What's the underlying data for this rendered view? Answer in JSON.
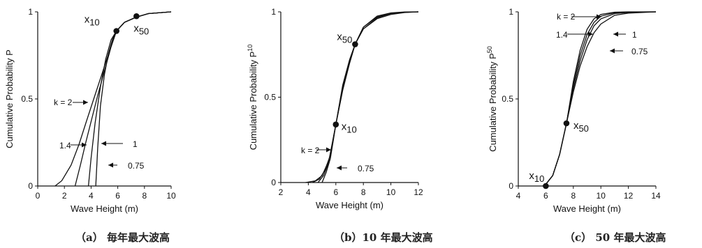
{
  "captions": {
    "a": "（a） 毎年最大波高",
    "b": "（b）10 年最大波高",
    "c": "（c） 50 年最大波高"
  },
  "chart_data": [
    {
      "type": "line",
      "xlabel": "Wave Height (m)",
      "ylabel": "Cumulative Probability",
      "ylabel_sup": "P",
      "xlim": [
        0,
        10
      ],
      "ylim": [
        0,
        1
      ],
      "xticks": [
        "0",
        "2",
        "4",
        "6",
        "8",
        "10"
      ],
      "yticks": [
        "0",
        "0.5",
        "1"
      ],
      "grid": false,
      "series": [
        {
          "name": "k = 2",
          "x": [
            1.3,
            1.8,
            2.5,
            3.1,
            3.6,
            4.2,
            4.8,
            5.4,
            5.9,
            6.5,
            7.4,
            8.3,
            10
          ],
          "y": [
            0,
            0.03,
            0.12,
            0.24,
            0.36,
            0.5,
            0.64,
            0.78,
            0.89,
            0.94,
            0.97,
            0.99,
            1.0
          ]
        },
        {
          "name": "1.4",
          "x": [
            2.8,
            3.2,
            3.6,
            4.0,
            4.5,
            5.0,
            5.5,
            5.9,
            6.5,
            7.4,
            8.3,
            10
          ],
          "y": [
            0,
            0.12,
            0.25,
            0.37,
            0.52,
            0.66,
            0.8,
            0.89,
            0.94,
            0.97,
            0.99,
            1.0
          ]
        },
        {
          "name": "1",
          "x": [
            3.8,
            4.0,
            4.3,
            4.7,
            5.1,
            5.5,
            5.9,
            6.5,
            7.4,
            8.3,
            10
          ],
          "y": [
            0,
            0.16,
            0.36,
            0.57,
            0.73,
            0.84,
            0.89,
            0.94,
            0.97,
            0.99,
            1.0
          ]
        },
        {
          "name": "0.75",
          "x": [
            4.35,
            4.5,
            4.7,
            5.0,
            5.3,
            5.6,
            5.9,
            6.5,
            7.4,
            8.3,
            10
          ],
          "y": [
            0,
            0.22,
            0.46,
            0.64,
            0.76,
            0.84,
            0.89,
            0.94,
            0.97,
            0.99,
            1.0
          ]
        }
      ],
      "points": [
        {
          "label": "x",
          "sub": "10",
          "x": 5.9,
          "y": 0.89
        },
        {
          "label": "x",
          "sub": "50",
          "x": 7.4,
          "y": 0.975
        }
      ],
      "annotations": [
        "k = 2",
        "1.4",
        "1",
        "0.75"
      ]
    },
    {
      "type": "line",
      "xlabel": "Wave Height (m)",
      "ylabel": "Cumulative Probability",
      "ylabel_sup": "P10",
      "xlim": [
        2,
        12
      ],
      "ylim": [
        0,
        1
      ],
      "xticks": [
        "2",
        "4",
        "6",
        "8",
        "10",
        "12"
      ],
      "yticks": [
        "0",
        "0.5",
        "1"
      ],
      "grid": false,
      "series": [
        {
          "name": "k = 2",
          "x": [
            3.8,
            4.5,
            5.0,
            5.5,
            6.0,
            6.5,
            7.0,
            7.4,
            8.0,
            9.0,
            10.0,
            11.0,
            12.0
          ],
          "y": [
            0,
            0.01,
            0.04,
            0.13,
            0.34,
            0.54,
            0.7,
            0.81,
            0.9,
            0.96,
            0.985,
            0.996,
            1.0
          ]
        },
        {
          "name": "1.4",
          "x": [
            4.3,
            4.8,
            5.2,
            5.6,
            6.0,
            6.5,
            7.0,
            7.4,
            8.0,
            9.0,
            10.0,
            11.0,
            12.0
          ],
          "y": [
            0,
            0.02,
            0.07,
            0.16,
            0.34,
            0.55,
            0.7,
            0.81,
            0.9,
            0.965,
            0.99,
            0.997,
            1.0
          ]
        },
        {
          "name": "1",
          "x": [
            4.7,
            5.1,
            5.4,
            5.7,
            6.0,
            6.5,
            7.0,
            7.4,
            8.0,
            9.0,
            10.0,
            11.0,
            12.0
          ],
          "y": [
            0,
            0.04,
            0.1,
            0.2,
            0.34,
            0.56,
            0.71,
            0.81,
            0.91,
            0.97,
            0.992,
            0.998,
            1.0
          ]
        },
        {
          "name": "0.75",
          "x": [
            5.0,
            5.3,
            5.6,
            5.8,
            6.0,
            6.5,
            7.0,
            7.4,
            8.0,
            9.0,
            10.0,
            11.0,
            12.0
          ],
          "y": [
            0,
            0.06,
            0.14,
            0.24,
            0.34,
            0.57,
            0.72,
            0.81,
            0.91,
            0.975,
            0.994,
            0.999,
            1.0
          ]
        }
      ],
      "points": [
        {
          "label": "x",
          "sub": "10",
          "x": 6.0,
          "y": 0.34
        },
        {
          "label": "x",
          "sub": "50",
          "x": 7.4,
          "y": 0.81
        }
      ],
      "annotations": [
        "k = 2",
        "0.75"
      ]
    },
    {
      "type": "line",
      "xlabel": "Wave Height (m)",
      "ylabel": "Cumulative Probability",
      "ylabel_sup": "P50",
      "xlim": [
        4,
        14
      ],
      "ylim": [
        0,
        1
      ],
      "xticks": [
        "4",
        "6",
        "8",
        "10",
        "12",
        "14"
      ],
      "yticks": [
        "0",
        "0.5",
        "1"
      ],
      "grid": false,
      "series": [
        {
          "name": "k = 2",
          "x": [
            5.8,
            6.0,
            6.5,
            7.0,
            7.5,
            8.0,
            8.5,
            9.0,
            9.5,
            10.0,
            11.0,
            12.0,
            14.0
          ],
          "y": [
            0,
            0.01,
            0.06,
            0.18,
            0.36,
            0.6,
            0.78,
            0.9,
            0.96,
            0.985,
            0.998,
            1.0,
            1.0
          ]
        },
        {
          "name": "1.4",
          "x": [
            5.8,
            6.0,
            6.5,
            7.0,
            7.5,
            8.0,
            8.5,
            9.0,
            9.5,
            10.0,
            11.0,
            12.0,
            14.0
          ],
          "y": [
            0,
            0.01,
            0.06,
            0.18,
            0.36,
            0.58,
            0.75,
            0.87,
            0.94,
            0.975,
            0.995,
            0.999,
            1.0
          ]
        },
        {
          "name": "1",
          "x": [
            5.8,
            6.0,
            6.5,
            7.0,
            7.5,
            8.0,
            8.5,
            9.0,
            9.5,
            10.0,
            11.0,
            12.0,
            14.0
          ],
          "y": [
            0,
            0.01,
            0.06,
            0.18,
            0.36,
            0.56,
            0.72,
            0.84,
            0.92,
            0.96,
            0.99,
            0.997,
            1.0
          ]
        },
        {
          "name": "0.75",
          "x": [
            5.8,
            6.0,
            6.5,
            7.0,
            7.5,
            8.0,
            8.5,
            9.0,
            9.5,
            10.0,
            11.0,
            12.0,
            14.0
          ],
          "y": [
            0,
            0.01,
            0.06,
            0.18,
            0.36,
            0.54,
            0.69,
            0.8,
            0.88,
            0.93,
            0.98,
            0.993,
            1.0
          ]
        }
      ],
      "points": [
        {
          "label": "x",
          "sub": "10",
          "x": 6.0,
          "y": 0.0
        },
        {
          "label": "x",
          "sub": "50",
          "x": 7.5,
          "y": 0.36
        }
      ],
      "annotations": [
        "k = 2",
        "1.4",
        "1",
        "0.75"
      ]
    }
  ]
}
